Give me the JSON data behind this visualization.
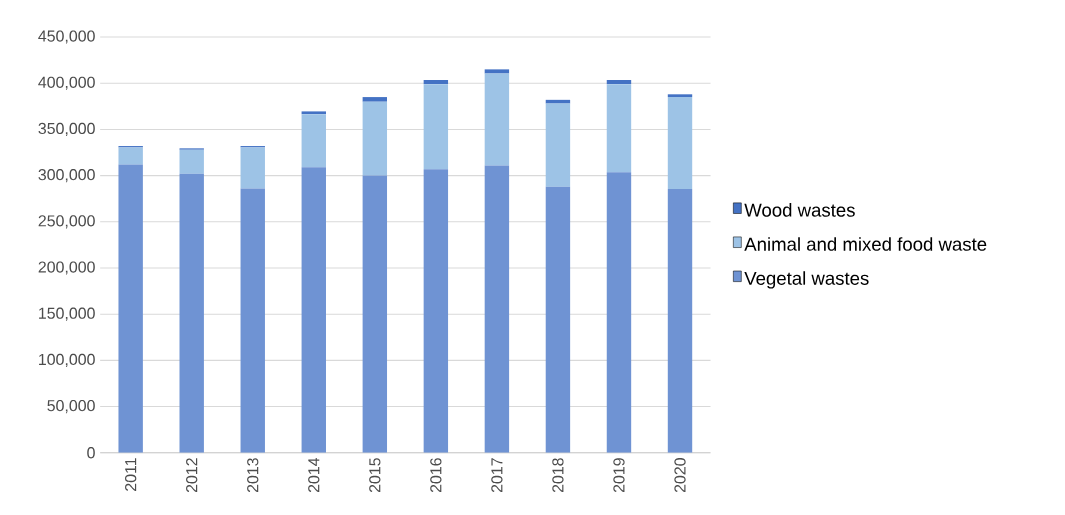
{
  "chart_data": {
    "type": "bar",
    "stacked": true,
    "categories": [
      "2011",
      "2012",
      "2013",
      "2014",
      "2015",
      "2016",
      "2017",
      "2018",
      "2019",
      "2020"
    ],
    "series": [
      {
        "name": "Vegetal wastes",
        "color": "#6f93d3",
        "values": [
          312000,
          302000,
          286000,
          309000,
          300000,
          307000,
          311000,
          288000,
          303500,
          285500
        ]
      },
      {
        "name": "Animal and mixed food waste",
        "color": "#9dc3e6",
        "values": [
          18500,
          26000,
          44500,
          57500,
          80000,
          92000,
          99500,
          90000,
          95500,
          99500
        ]
      },
      {
        "name": "Wood wastes",
        "color": "#4472c4",
        "values": [
          1500,
          1500,
          1500,
          3000,
          5000,
          4500,
          4500,
          4000,
          4500,
          3000
        ]
      }
    ],
    "ylim": [
      0,
      450000
    ],
    "yticks": [
      {
        "value": 0,
        "label": "0"
      },
      {
        "value": 50000,
        "label": "50,000"
      },
      {
        "value": 100000,
        "label": "100,000"
      },
      {
        "value": 150000,
        "label": "150,000"
      },
      {
        "value": 200000,
        "label": "200,000"
      },
      {
        "value": 250000,
        "label": "250,000"
      },
      {
        "value": 300000,
        "label": "300,000"
      },
      {
        "value": 350000,
        "label": "350,000"
      },
      {
        "value": 400000,
        "label": "400,000"
      },
      {
        "value": 450000,
        "label": "450,000"
      }
    ],
    "grid": "y",
    "legend": "right"
  }
}
